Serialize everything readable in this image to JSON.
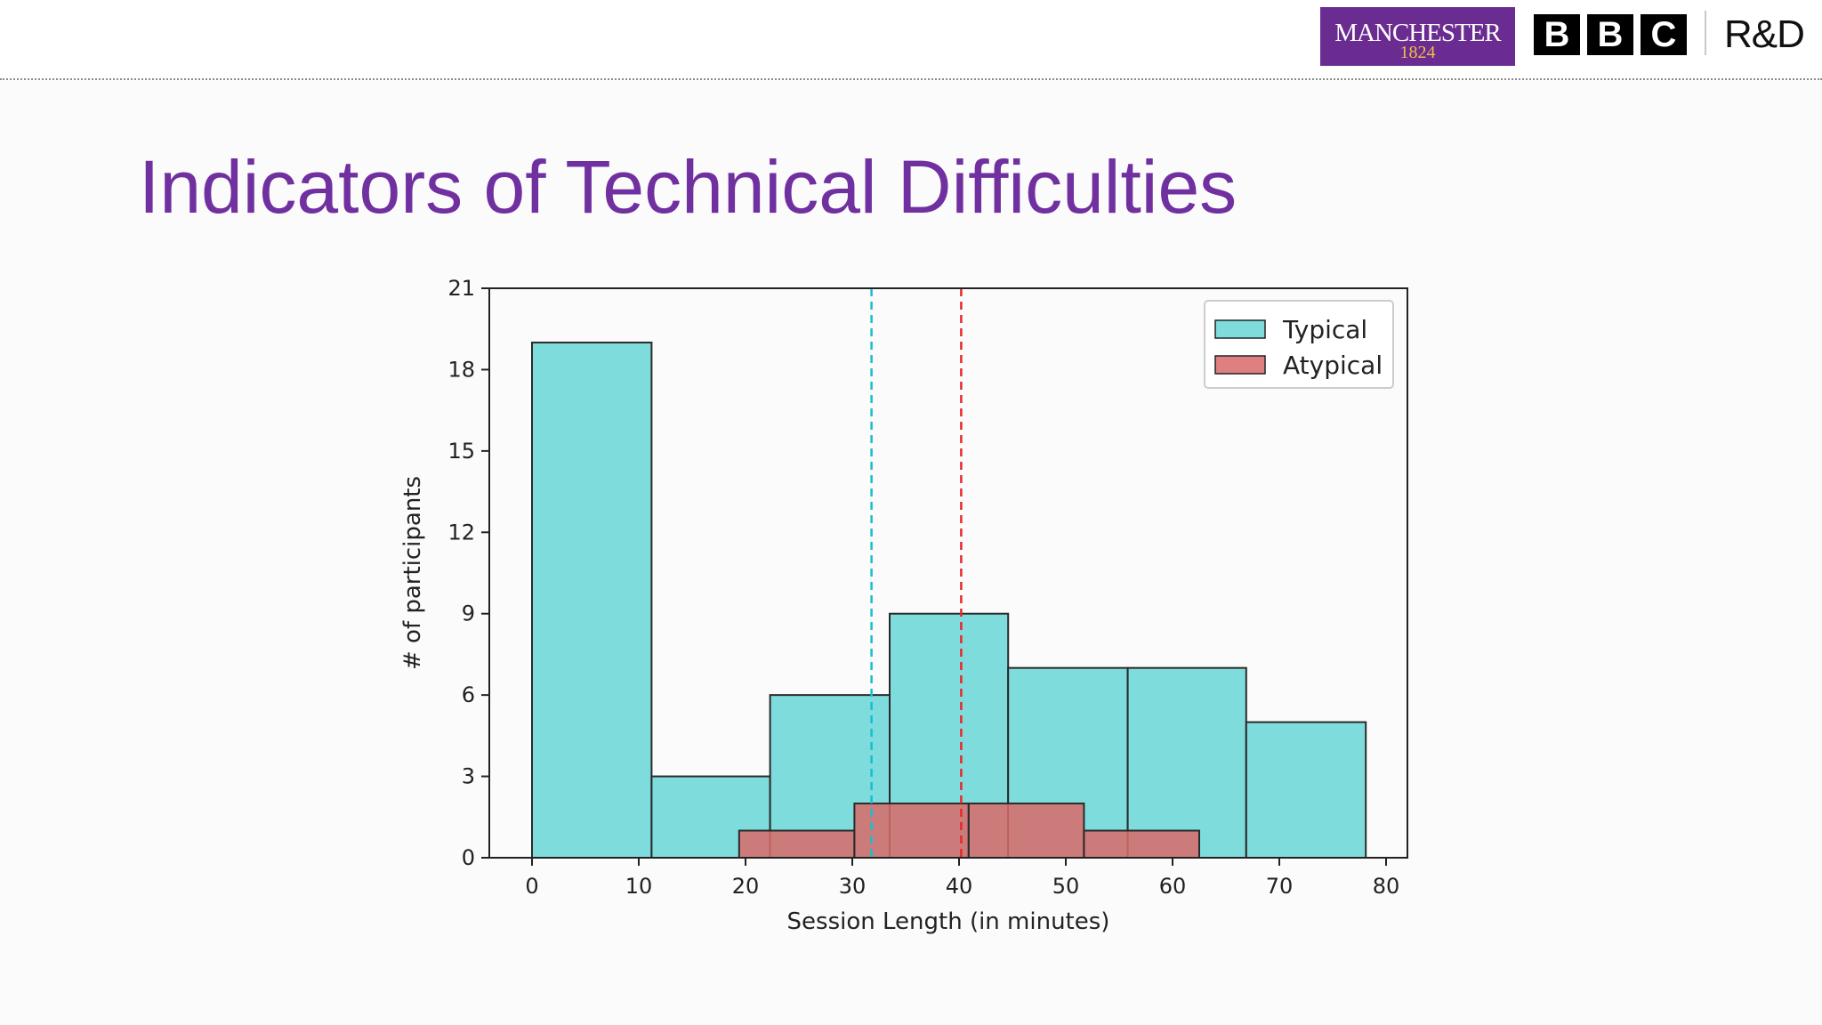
{
  "header": {
    "manchester_logo": {
      "word": "MANCHESTER",
      "year": "1824"
    },
    "bbc_logo": [
      "B",
      "B",
      "C"
    ],
    "rnd_label": "R&D"
  },
  "slide": {
    "title": "Indicators of Technical Difficulties"
  },
  "colors": {
    "title": "#7030a0",
    "typical_fill": "#7fdcdc",
    "atypical_fill": "#d96a6a",
    "typical_mean_line": "#17becf",
    "atypical_mean_line": "#e8282b",
    "manchester_purple": "#6b2c91",
    "manchester_gold": "#f1be48"
  },
  "chart_data": {
    "type": "bar",
    "subtype": "histogram",
    "xlabel": "Session Length (in minutes)",
    "ylabel": "# of participants",
    "xlim": [
      -4,
      82
    ],
    "ylim": [
      0,
      21
    ],
    "xticks": [
      0,
      10,
      20,
      30,
      40,
      50,
      60,
      70,
      80
    ],
    "yticks": [
      0,
      3,
      6,
      9,
      12,
      15,
      18,
      21
    ],
    "grid": false,
    "legend": {
      "placement": "top-right",
      "entries": [
        "Typical",
        "Atypical"
      ]
    },
    "series": [
      {
        "name": "Typical",
        "color": "#7fdcdc",
        "bins": [
          {
            "x0": 0,
            "x1": 11.2,
            "count": 19
          },
          {
            "x0": 11.2,
            "x1": 22.3,
            "count": 3
          },
          {
            "x0": 22.3,
            "x1": 33.5,
            "count": 6
          },
          {
            "x0": 33.5,
            "x1": 44.6,
            "count": 9
          },
          {
            "x0": 44.6,
            "x1": 55.8,
            "count": 7
          },
          {
            "x0": 55.8,
            "x1": 66.9,
            "count": 7
          },
          {
            "x0": 66.9,
            "x1": 78.1,
            "count": 5
          }
        ],
        "mean_line": 31.8
      },
      {
        "name": "Atypical",
        "color": "#d96a6a",
        "bins": [
          {
            "x0": 19.4,
            "x1": 30.2,
            "count": 1
          },
          {
            "x0": 30.2,
            "x1": 40.9,
            "count": 2
          },
          {
            "x0": 40.9,
            "x1": 51.7,
            "count": 2
          },
          {
            "x0": 51.7,
            "x1": 62.5,
            "count": 1
          }
        ],
        "mean_line": 40.2
      }
    ]
  }
}
